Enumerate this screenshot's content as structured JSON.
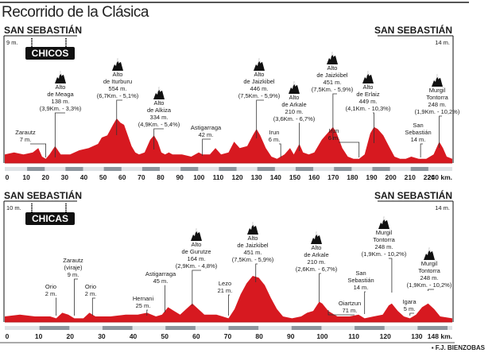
{
  "title": "Recorrido de la Clásica",
  "credit": "F.J. BIENZOBAS",
  "colors": {
    "profile_fill": "#d71920",
    "bar_dark": "#8d969e",
    "bar_light": "#dfe3e6",
    "text": "#1a1a1a",
    "badge_bg": "#111111"
  },
  "chart_data": [
    {
      "type": "area",
      "title": "CHICOS",
      "start_label": "SAN SEBASTIÁN",
      "start_alt": "9 m.",
      "end_label": "SAN SEBASTIÁN",
      "end_alt": "14 m.",
      "xlabel": "km.",
      "xlim": [
        0,
        240
      ],
      "x_ticks": [
        "0",
        "10",
        "20",
        "30",
        "40",
        "50",
        "60",
        "70",
        "80",
        "90",
        "100",
        "110",
        "120",
        "130",
        "140",
        "150",
        "160",
        "170",
        "180",
        "190",
        "200",
        "210",
        "220",
        "240 km."
      ],
      "points": [
        {
          "name": "Zarautz",
          "alt": "7 m.",
          "km": 22,
          "climb": false
        },
        {
          "name": "Alto de Meaga",
          "alt": "138 m.",
          "km": 27,
          "detail": "(3,9Km. - 3,3%)",
          "climb": true
        },
        {
          "name": "Alto de Iturburu",
          "alt": "554 m.",
          "km": 60,
          "detail": "(6,7Km. - 5,1%)",
          "climb": true
        },
        {
          "name": "Alto de Alkiza",
          "alt": "334 m.",
          "km": 80,
          "detail": "(4,9Km. - 5,4%)",
          "climb": true
        },
        {
          "name": "Astigarraga",
          "alt": "42 m.",
          "km": 106,
          "climb": false
        },
        {
          "name": "Alto de Jaizkibel",
          "alt": "446 m.",
          "km": 135,
          "detail": "(7,5Km. - 5,9%)",
          "climb": true
        },
        {
          "name": "Irun",
          "alt": "6 m.",
          "km": 148,
          "climb": false
        },
        {
          "name": "Alto de Arkale",
          "alt": "210 m.",
          "km": 158,
          "detail": "(3,6Km. - 6,7%)",
          "climb": true
        },
        {
          "name": "Alto de Jaizkibel",
          "alt": "451 m.",
          "km": 176,
          "detail": "(7,5Km. - 5,9%)",
          "climb": true
        },
        {
          "name": "Irun",
          "alt": "6 m.",
          "km": 190,
          "climb": false
        },
        {
          "name": "Alto de Erlaiz",
          "alt": "449 m.",
          "km": 198,
          "detail": "(4,1Km. - 10,3%)",
          "climb": true
        },
        {
          "name": "San Sebastián",
          "alt": "14 m.",
          "km": 223,
          "climb": false
        },
        {
          "name": "Murgil Tontorra",
          "alt": "248 m.",
          "km": 233,
          "detail": "(1,9Km. - 10,2%)",
          "climb": true
        }
      ]
    },
    {
      "type": "area",
      "title": "CHICAS",
      "start_label": "SAN SEBASTIÁN",
      "start_alt": "10 m.",
      "end_label": "SAN SEBASTIÁN",
      "end_alt": "14 m.",
      "xlabel": "km.",
      "xlim": [
        0,
        148
      ],
      "x_ticks": [
        "0",
        "10",
        "20",
        "30",
        "40",
        "50",
        "60",
        "70",
        "80",
        "90",
        "100",
        "110",
        "120",
        "130",
        "148 km."
      ],
      "points": [
        {
          "name": "Orio",
          "alt": "2 m.",
          "km": 17,
          "climb": false
        },
        {
          "name": "Zarautz (viraje)",
          "alt": "9 m.",
          "km": 23,
          "climb": false
        },
        {
          "name": "Orio",
          "alt": "2 m.",
          "km": 29,
          "climb": false
        },
        {
          "name": "Hernani",
          "alt": "25 m.",
          "km": 47,
          "climb": false
        },
        {
          "name": "Astigarraga",
          "alt": "45 m.",
          "km": 53,
          "climb": false
        },
        {
          "name": "Alto de Gurutze",
          "alt": "164 m.",
          "km": 62,
          "detail": "(2,9Km. - 4,8%)",
          "climb": true
        },
        {
          "name": "Lezo",
          "alt": "21 m.",
          "km": 74,
          "climb": false
        },
        {
          "name": "Alto de Jaizkibel",
          "alt": "451 m.",
          "km": 83,
          "detail": "(7,5Km. - 5,9%)",
          "climb": true
        },
        {
          "name": "Alto de Arkale",
          "alt": "210 m.",
          "km": 104,
          "detail": "(2,6Km. - 6,7%)",
          "climb": true
        },
        {
          "name": "Oiartzun",
          "alt": "71 m.",
          "km": 107,
          "climb": false
        },
        {
          "name": "San Sebastián",
          "alt": "14 m.",
          "km": 119,
          "climb": false
        },
        {
          "name": "Murgil Tontorra",
          "alt": "248 m.",
          "km": 128,
          "detail": "(1,9Km. - 10,2%)",
          "climb": true
        },
        {
          "name": "Igara",
          "alt": "5 m.",
          "km": 134,
          "climb": false
        },
        {
          "name": "Murgil Tontorra",
          "alt": "248 m.",
          "km": 140,
          "detail": "(1,9Km. - 10,2%)",
          "climb": true
        }
      ]
    }
  ]
}
